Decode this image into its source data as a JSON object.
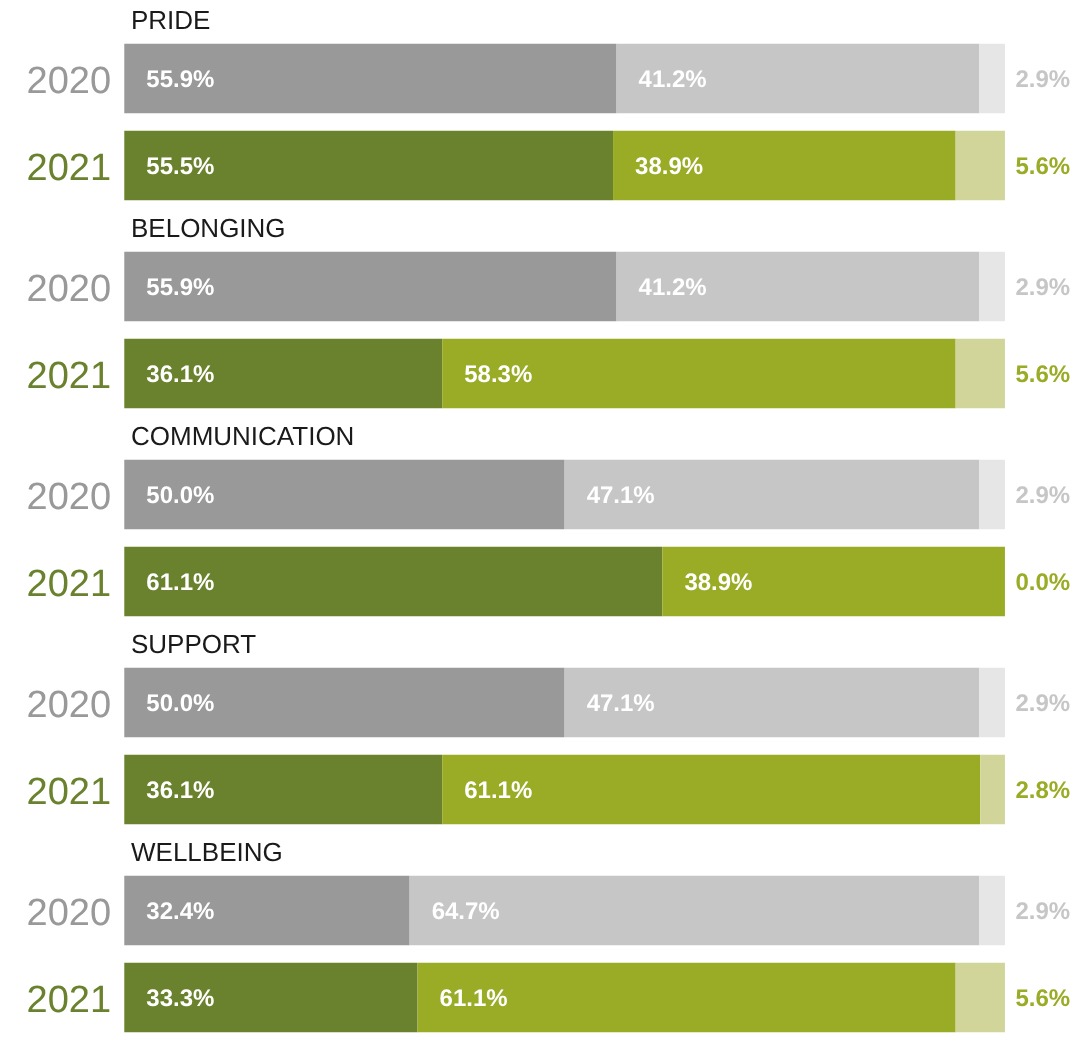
{
  "chart_data": [
    {
      "type": "bar",
      "orientation": "horizontal",
      "stacked": true,
      "title": "PRIDE",
      "categories": [
        "2020",
        "2021"
      ],
      "series": [
        {
          "colors": [
            "#999999",
            "#6a822d"
          ],
          "values": [
            55.9,
            55.5
          ],
          "value_labels": [
            "55.9%",
            "55.5%"
          ]
        },
        {
          "colors": [
            "#c6c6c6",
            "#9aab25"
          ],
          "values": [
            41.2,
            38.9
          ],
          "value_labels": [
            "41.2%",
            "38.9%"
          ]
        },
        {
          "colors": [
            "#e6e6e6",
            "#d2d59a"
          ],
          "values": [
            2.9,
            5.6
          ],
          "value_labels": [
            "2.9%",
            "5.6%"
          ]
        }
      ]
    },
    {
      "type": "bar",
      "orientation": "horizontal",
      "stacked": true,
      "title": "BELONGING",
      "categories": [
        "2020",
        "2021"
      ],
      "series": [
        {
          "colors": [
            "#999999",
            "#6a822d"
          ],
          "values": [
            55.9,
            36.1
          ],
          "value_labels": [
            "55.9%",
            "36.1%"
          ]
        },
        {
          "colors": [
            "#c6c6c6",
            "#9aab25"
          ],
          "values": [
            41.2,
            58.3
          ],
          "value_labels": [
            "41.2%",
            "58.3%"
          ]
        },
        {
          "colors": [
            "#e6e6e6",
            "#d2d59a"
          ],
          "values": [
            2.9,
            5.6
          ],
          "value_labels": [
            "2.9%",
            "5.6%"
          ]
        }
      ]
    },
    {
      "type": "bar",
      "orientation": "horizontal",
      "stacked": true,
      "title": "COMMUNICATION",
      "categories": [
        "2020",
        "2021"
      ],
      "series": [
        {
          "colors": [
            "#999999",
            "#6a822d"
          ],
          "values": [
            50.0,
            61.1
          ],
          "value_labels": [
            "50.0%",
            "61.1%"
          ]
        },
        {
          "colors": [
            "#c6c6c6",
            "#9aab25"
          ],
          "values": [
            47.1,
            38.9
          ],
          "value_labels": [
            "47.1%",
            "38.9%"
          ]
        },
        {
          "colors": [
            "#e6e6e6",
            "#d2d59a"
          ],
          "values": [
            2.9,
            0.0
          ],
          "value_labels": [
            "2.9%",
            "0.0%"
          ]
        }
      ]
    },
    {
      "type": "bar",
      "orientation": "horizontal",
      "stacked": true,
      "title": "SUPPORT",
      "categories": [
        "2020",
        "2021"
      ],
      "series": [
        {
          "colors": [
            "#999999",
            "#6a822d"
          ],
          "values": [
            50.0,
            36.1
          ],
          "value_labels": [
            "50.0%",
            "36.1%"
          ]
        },
        {
          "colors": [
            "#c6c6c6",
            "#9aab25"
          ],
          "values": [
            47.1,
            61.1
          ],
          "value_labels": [
            "47.1%",
            "61.1%"
          ]
        },
        {
          "colors": [
            "#e6e6e6",
            "#d2d59a"
          ],
          "values": [
            2.9,
            2.8
          ],
          "value_labels": [
            "2.9%",
            "2.8%"
          ]
        }
      ]
    },
    {
      "type": "bar",
      "orientation": "horizontal",
      "stacked": true,
      "title": "WELLBEING",
      "categories": [
        "2020",
        "2021"
      ],
      "series": [
        {
          "colors": [
            "#999999",
            "#6a822d"
          ],
          "values": [
            32.4,
            33.3
          ],
          "value_labels": [
            "32.4%",
            "33.3%"
          ]
        },
        {
          "colors": [
            "#c6c6c6",
            "#9aab25"
          ],
          "values": [
            64.7,
            61.1
          ],
          "value_labels": [
            "64.7%",
            "61.1%"
          ]
        },
        {
          "colors": [
            "#e6e6e6",
            "#d2d59a"
          ],
          "values": [
            2.9,
            5.6
          ],
          "value_labels": [
            "2.9%",
            "5.6%"
          ]
        }
      ]
    }
  ]
}
